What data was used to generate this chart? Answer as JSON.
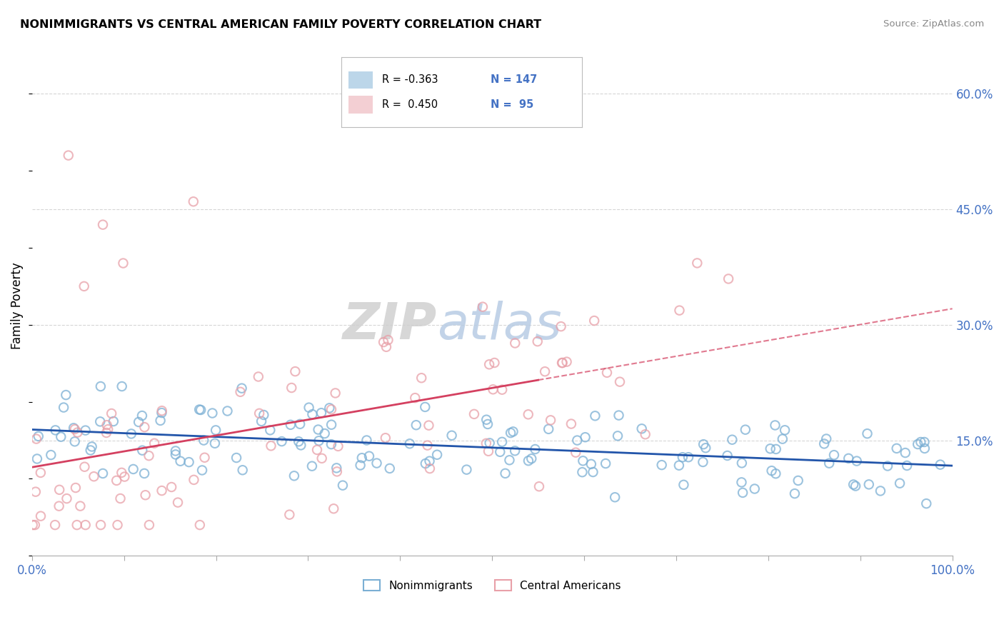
{
  "title": "NONIMMIGRANTS VS CENTRAL AMERICAN FAMILY POVERTY CORRELATION CHART",
  "source_text": "Source: ZipAtlas.com",
  "ylabel": "Family Poverty",
  "xlim": [
    0,
    100
  ],
  "ylim": [
    0,
    65
  ],
  "ytick_positions": [
    0,
    15,
    30,
    45,
    60
  ],
  "ytick_labels": [
    "",
    "15.0%",
    "30.0%",
    "45.0%",
    "60.0%"
  ],
  "blue_color": "#7bafd4",
  "pink_color": "#e8a0a8",
  "blue_line_color": "#2255aa",
  "pink_line_color": "#d44060",
  "axis_label_color": "#4472c4",
  "watermark_zip": "ZIP",
  "watermark_atlas": "atlas",
  "background_color": "#ffffff",
  "grid_color": "#cccccc",
  "blue_seed": 42,
  "pink_seed": 99,
  "n_blue": 147,
  "n_pink": 95,
  "blue_intercept": 15.5,
  "blue_slope": -0.04,
  "blue_noise": 3.0,
  "pink_intercept": 7.0,
  "pink_slope": 0.28,
  "pink_noise": 5.5,
  "pink_xmax": 60
}
